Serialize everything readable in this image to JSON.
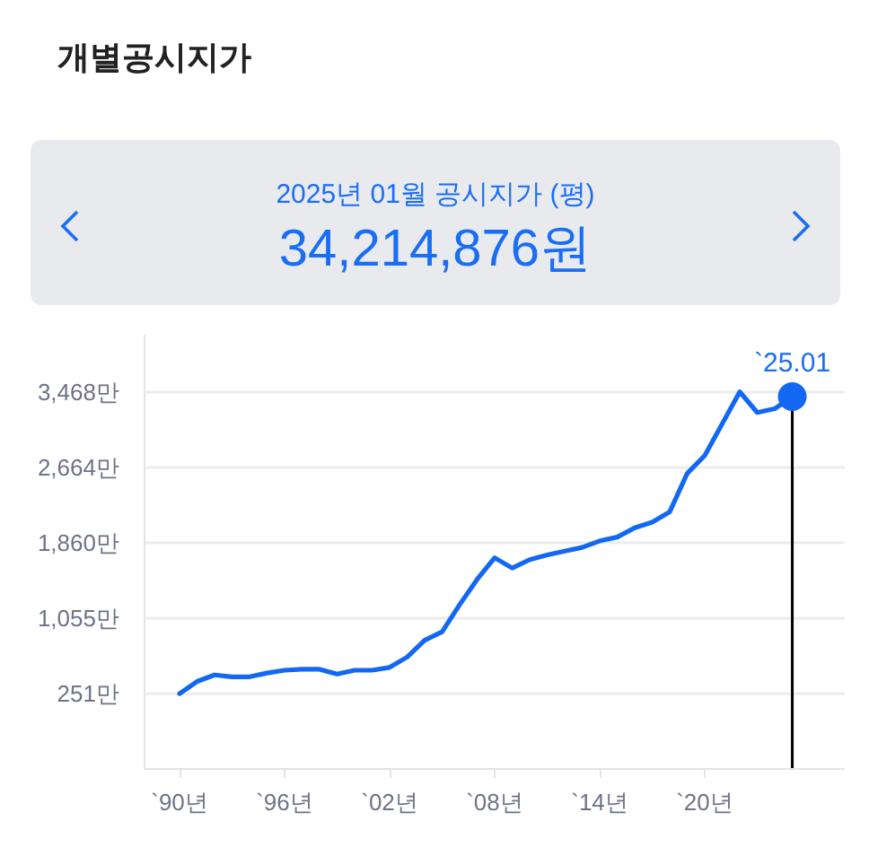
{
  "chart_data": {
    "type": "line",
    "title": "개별공시지가",
    "subtitle": "2025년 01월 공시지가 (평)",
    "annotations": [
      "34,214,876원",
      {
        "text": "`25.01",
        "x": "2025-01",
        "y": 3420
      }
    ],
    "x": [
      "1990-01",
      "1991-01",
      "1992-01",
      "1993-01",
      "1994-01",
      "1995-01",
      "1996-01",
      "1997-01",
      "1998-01",
      "1999-01",
      "2000-01",
      "2001-01",
      "2002-01",
      "2003-01",
      "2004-01",
      "2005-01",
      "2006-01",
      "2007-01",
      "2008-01",
      "2009-01",
      "2010-01",
      "2011-01",
      "2012-01",
      "2013-01",
      "2014-01",
      "2015-01",
      "2016-01",
      "2017-01",
      "2018-01",
      "2019-01",
      "2020-01",
      "2021-01",
      "2022-01",
      "2023-01",
      "2024-01",
      "2025-01"
    ],
    "series": [
      {
        "color": "#1268f3",
        "values": [
          250,
          380,
          450,
          430,
          430,
          470,
          500,
          510,
          510,
          460,
          500,
          500,
          530,
          640,
          820,
          910,
          1200,
          1470,
          1700,
          1590,
          1680,
          1730,
          1770,
          1810,
          1880,
          1920,
          2020,
          2080,
          2190,
          2600,
          2790,
          3130,
          3470,
          3250,
          3290,
          3420
        ]
      },
      {
        "type": "scatter",
        "x": [
          "2025-01"
        ],
        "values": [
          3420
        ],
        "color": "#1268f3",
        "marker": "circle"
      }
    ],
    "xlim": [
      "1988-01",
      "2028-01"
    ],
    "ylim": [
      -553,
      4080
    ],
    "xticks": [
      {
        "value": "1990-01",
        "label": "`90년"
      },
      {
        "value": "1996-01",
        "label": "`96년"
      },
      {
        "value": "2002-01",
        "label": "`02년"
      },
      {
        "value": "2008-01",
        "label": "`08년"
      },
      {
        "value": "2014-01",
        "label": "`14년"
      },
      {
        "value": "2020-01",
        "label": "`20년"
      }
    ],
    "yticks": [
      {
        "value": 251,
        "label": "251만"
      },
      {
        "value": 1055,
        "label": "1,055만"
      },
      {
        "value": 1860,
        "label": "1,860만"
      },
      {
        "value": 2664,
        "label": "2,664만"
      },
      {
        "value": 3468,
        "label": "3,468만"
      }
    ],
    "grid": "y",
    "ref_lines": [
      {
        "axis": "x",
        "value": "2025-01",
        "color": "#000000"
      }
    ]
  }
}
